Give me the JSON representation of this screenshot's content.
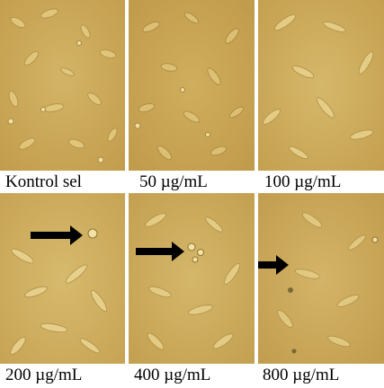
{
  "figure": {
    "panels": [
      {
        "label": "Kontrol sel",
        "arrow": false
      },
      {
        "label": "50 µg/mL",
        "arrow": false
      },
      {
        "label": "100 µg/mL",
        "arrow": false
      },
      {
        "label": "200 µg/mL",
        "arrow": true
      },
      {
        "label": "400 µg/mL",
        "arrow": true
      },
      {
        "label": "800 µg/mL",
        "arrow": true
      }
    ],
    "colors": {
      "background": "#c9a655",
      "cell": "#e6cf86",
      "cell_edge": "#a88a3e",
      "arrow": "#000000"
    }
  }
}
